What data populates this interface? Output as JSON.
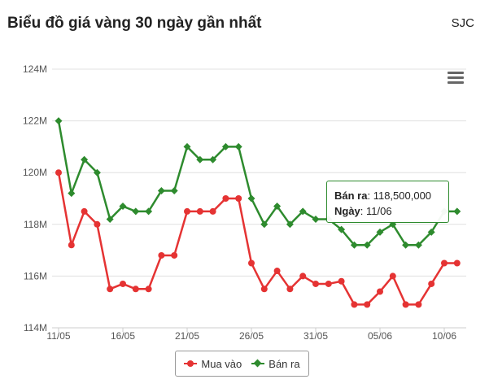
{
  "title": "Biểu đồ giá vàng 30 ngày gần nhất",
  "brand": "SJC",
  "menu_icon": "hamburger-menu-icon",
  "tooltip": {
    "label1": "Bán ra",
    "value1": "118,500,000",
    "label2": "Ngày",
    "value2": "11/06"
  },
  "colors": {
    "buy": "#e53333",
    "sell": "#2e8b2e",
    "grid": "#e0e0e0",
    "axis_text": "#555555"
  },
  "chart_data": {
    "type": "line",
    "y_tick_labels": [
      "114M",
      "116M",
      "118M",
      "120M",
      "122M",
      "124M"
    ],
    "y_ticks": [
      114,
      116,
      118,
      120,
      122,
      124
    ],
    "ylim": [
      114,
      124
    ],
    "x_tick_labels": [
      "11/05",
      "16/05",
      "21/05",
      "26/05",
      "31/05",
      "05/06",
      "10/06"
    ],
    "x_tick_indices": [
      0,
      5,
      10,
      15,
      20,
      25,
      30
    ],
    "y_unit": "M",
    "legend_position": "bottom-center",
    "grid": true,
    "series": [
      {
        "name": "Mua vào",
        "marker": "circle",
        "color": "#e53333",
        "values": [
          120.0,
          117.2,
          118.5,
          118.0,
          115.5,
          115.7,
          115.5,
          115.5,
          116.8,
          116.8,
          118.5,
          118.5,
          118.5,
          119.0,
          119.0,
          116.5,
          115.5,
          116.2,
          115.5,
          116.0,
          115.7,
          115.7,
          115.8,
          114.9,
          114.9,
          115.4,
          116.0,
          114.9,
          114.9,
          115.7,
          116.5,
          116.5
        ]
      },
      {
        "name": "Bán ra",
        "marker": "diamond",
        "color": "#2e8b2e",
        "values": [
          122.0,
          119.2,
          120.5,
          120.0,
          118.2,
          118.7,
          118.5,
          118.5,
          119.3,
          119.3,
          121.0,
          120.5,
          120.5,
          121.0,
          121.0,
          119.0,
          118.0,
          118.7,
          118.0,
          118.5,
          118.2,
          118.2,
          117.8,
          117.2,
          117.2,
          117.7,
          118.0,
          117.2,
          117.2,
          117.7,
          118.5,
          118.5
        ]
      }
    ]
  }
}
